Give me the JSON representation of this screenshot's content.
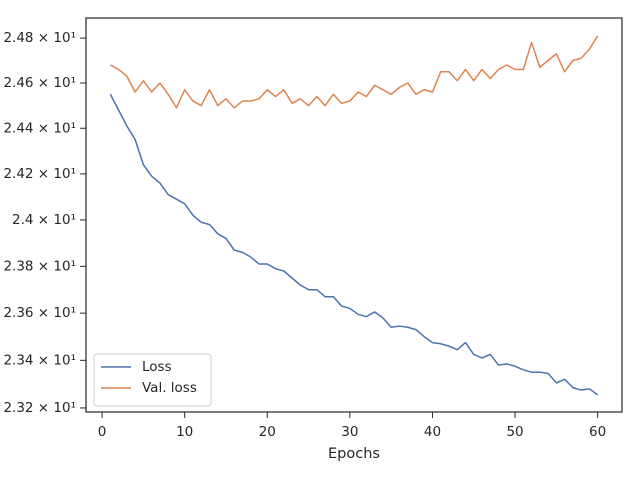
{
  "chart_data": {
    "type": "line",
    "xlabel": "Epochs",
    "x": [
      1,
      2,
      3,
      4,
      5,
      6,
      7,
      8,
      9,
      10,
      11,
      12,
      13,
      14,
      15,
      16,
      17,
      18,
      19,
      20,
      21,
      22,
      23,
      24,
      25,
      26,
      27,
      28,
      29,
      30,
      31,
      32,
      33,
      34,
      35,
      36,
      37,
      38,
      39,
      40,
      41,
      42,
      43,
      44,
      45,
      46,
      47,
      48,
      49,
      50,
      51,
      52,
      53,
      54,
      55,
      56,
      57,
      58,
      59,
      60
    ],
    "series": [
      {
        "name": "Loss",
        "color": "#4c72b0",
        "values": [
          24.55,
          24.48,
          24.41,
          24.35,
          24.24,
          24.19,
          24.16,
          24.11,
          24.09,
          24.07,
          24.02,
          23.99,
          23.98,
          23.94,
          23.92,
          23.87,
          23.86,
          23.84,
          23.81,
          23.81,
          23.79,
          23.78,
          23.75,
          23.72,
          23.7,
          23.7,
          23.67,
          23.67,
          23.63,
          23.62,
          23.595,
          23.585,
          23.605,
          23.58,
          23.54,
          23.545,
          23.54,
          23.53,
          23.5,
          23.475,
          23.47,
          23.46,
          23.445,
          23.475,
          23.425,
          23.41,
          23.425,
          23.38,
          23.385,
          23.375,
          23.36,
          23.35,
          23.35,
          23.345,
          23.305,
          23.32,
          23.285,
          23.275,
          23.28,
          23.255
        ]
      },
      {
        "name": "Val. loss",
        "color": "#dd8452",
        "values": [
          24.68,
          24.66,
          24.63,
          24.56,
          24.61,
          24.56,
          24.6,
          24.55,
          24.49,
          24.57,
          24.52,
          24.5,
          24.57,
          24.5,
          24.53,
          24.49,
          24.52,
          24.52,
          24.53,
          24.57,
          24.54,
          24.57,
          24.51,
          24.53,
          24.5,
          24.54,
          24.5,
          24.55,
          24.51,
          24.52,
          24.56,
          24.54,
          24.59,
          24.57,
          24.55,
          24.58,
          24.6,
          24.55,
          24.57,
          24.56,
          24.65,
          24.65,
          24.61,
          24.66,
          24.61,
          24.66,
          24.62,
          24.66,
          24.68,
          24.66,
          24.66,
          24.78,
          24.67,
          24.7,
          24.73,
          24.65,
          24.7,
          24.71,
          24.75,
          24.81
        ]
      }
    ],
    "xlim": [
      -1.95,
      62.95
    ],
    "xticks": [
      0,
      10,
      20,
      30,
      40,
      50,
      60
    ],
    "ylim": [
      23.183,
      24.89
    ],
    "yscale": "log",
    "yticks": [
      {
        "value": 23.2,
        "label": "2.32 × 10¹"
      },
      {
        "value": 23.4,
        "label": "2.34 × 10¹"
      },
      {
        "value": 23.6,
        "label": "2.36 × 10¹"
      },
      {
        "value": 23.8,
        "label": "2.38 × 10¹"
      },
      {
        "value": 24.0,
        "label": "2.4 × 10¹"
      },
      {
        "value": 24.2,
        "label": "2.42 × 10¹"
      },
      {
        "value": 24.4,
        "label": "2.44 × 10¹"
      },
      {
        "value": 24.6,
        "label": "2.46 × 10¹"
      },
      {
        "value": 24.8,
        "label": "2.48 × 10¹"
      }
    ],
    "grid": false,
    "legend": "lower left"
  }
}
